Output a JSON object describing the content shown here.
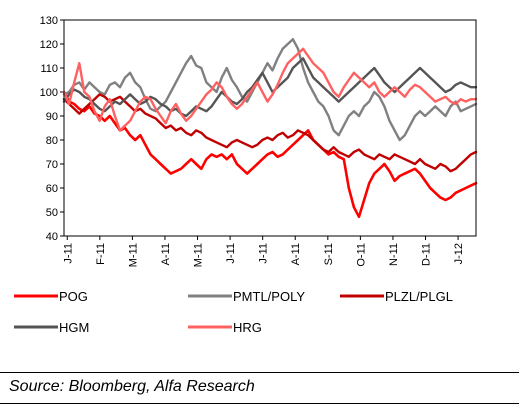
{
  "chart_data": {
    "type": "line",
    "title": "",
    "xlabel": "",
    "ylabel": "",
    "ylim": [
      40,
      130
    ],
    "yticks": [
      40,
      50,
      60,
      70,
      80,
      90,
      100,
      110,
      120,
      130
    ],
    "x_tick_labels": [
      "J-11",
      "F-11",
      "M-11",
      "A-11",
      "M-11",
      "J-11",
      "J-11",
      "A-11",
      "S-11",
      "O-11",
      "N-11",
      "D-11",
      "J-12"
    ],
    "grid": false,
    "legend_position": "bottom",
    "series": [
      {
        "name": "POG",
        "color": "#ff0000",
        "width": 2.6,
        "values": [
          100,
          96,
          95,
          93,
          92,
          94,
          91,
          90,
          88,
          90,
          87,
          84,
          85,
          82,
          80,
          82,
          78,
          74,
          72,
          70,
          68,
          66,
          67,
          68,
          70,
          72,
          70,
          68,
          72,
          74,
          73,
          74,
          72,
          74,
          70,
          68,
          66,
          68,
          70,
          72,
          74,
          75,
          73,
          74,
          76,
          78,
          80,
          82,
          84,
          80,
          78,
          76,
          74,
          75,
          73,
          72,
          60,
          52,
          48,
          55,
          62,
          66,
          68,
          70,
          67,
          63,
          65,
          66,
          67,
          68,
          66,
          63,
          60,
          58,
          56,
          55,
          56,
          58,
          59,
          60,
          61,
          62
        ]
      },
      {
        "name": "PMTL/POLY",
        "color": "#808080",
        "width": 2.4,
        "values": [
          99,
          100,
          103,
          104,
          101,
          104,
          102,
          100,
          99,
          103,
          104,
          102,
          106,
          108,
          104,
          102,
          97,
          93,
          92,
          94,
          96,
          100,
          104,
          108,
          112,
          115,
          111,
          110,
          104,
          102,
          100,
          106,
          110,
          105,
          102,
          98,
          96,
          100,
          104,
          108,
          112,
          109,
          114,
          118,
          120,
          122,
          118,
          110,
          104,
          100,
          96,
          94,
          90,
          84,
          82,
          86,
          90,
          92,
          90,
          94,
          96,
          100,
          98,
          94,
          88,
          84,
          80,
          82,
          86,
          90,
          92,
          90,
          92,
          94,
          92,
          90,
          94,
          96,
          92,
          93,
          94,
          95
        ]
      },
      {
        "name": "PLZL/PLGL",
        "color": "#c00000",
        "width": 2.4,
        "values": [
          97,
          95,
          93,
          91,
          93,
          95,
          97,
          99,
          98,
          96,
          97,
          98,
          96,
          94,
          92,
          93,
          91,
          90,
          89,
          87,
          85,
          86,
          84,
          85,
          83,
          82,
          84,
          83,
          81,
          80,
          79,
          78,
          77,
          79,
          80,
          79,
          78,
          77,
          78,
          80,
          81,
          80,
          82,
          83,
          81,
          82,
          84,
          83,
          82,
          80,
          78,
          76,
          75,
          77,
          75,
          74,
          73,
          75,
          76,
          74,
          73,
          72,
          74,
          73,
          72,
          74,
          73,
          72,
          71,
          70,
          72,
          70,
          69,
          68,
          70,
          69,
          67,
          68,
          70,
          72,
          74,
          75
        ]
      },
      {
        "name": "HGM",
        "color": "#555555",
        "width": 2.4,
        "values": [
          96,
          99,
          101,
          100,
          98,
          97,
          95,
          93,
          92,
          94,
          96,
          95,
          97,
          99,
          97,
          95,
          96,
          98,
          97,
          95,
          94,
          92,
          93,
          91,
          90,
          92,
          94,
          93,
          92,
          94,
          97,
          100,
          98,
          96,
          95,
          97,
          100,
          102,
          105,
          108,
          104,
          100,
          102,
          104,
          106,
          110,
          112,
          114,
          110,
          106,
          104,
          102,
          100,
          98,
          96,
          98,
          100,
          102,
          104,
          106,
          108,
          110,
          107,
          104,
          102,
          100,
          102,
          104,
          106,
          108,
          110,
          108,
          106,
          104,
          102,
          100,
          101,
          103,
          104,
          103,
          102,
          102
        ]
      },
      {
        "name": "HRG",
        "color": "#ff6060",
        "width": 2.4,
        "values": [
          100,
          95,
          104,
          112,
          100,
          98,
          92,
          88,
          94,
          97,
          90,
          84,
          86,
          88,
          92,
          96,
          98,
          97,
          93,
          90,
          87,
          92,
          95,
          91,
          88,
          90,
          93,
          96,
          99,
          101,
          104,
          102,
          98,
          95,
          93,
          95,
          98,
          101,
          104,
          100,
          96,
          99,
          103,
          108,
          112,
          114,
          116,
          118,
          115,
          112,
          110,
          108,
          104,
          100,
          98,
          102,
          105,
          108,
          106,
          104,
          102,
          104,
          100,
          98,
          100,
          102,
          100,
          98,
          101,
          103,
          102,
          100,
          98,
          96,
          97,
          98,
          96,
          95,
          97,
          96,
          97,
          97
        ]
      }
    ]
  },
  "source": "Source: Bloomberg, Alfa Research"
}
